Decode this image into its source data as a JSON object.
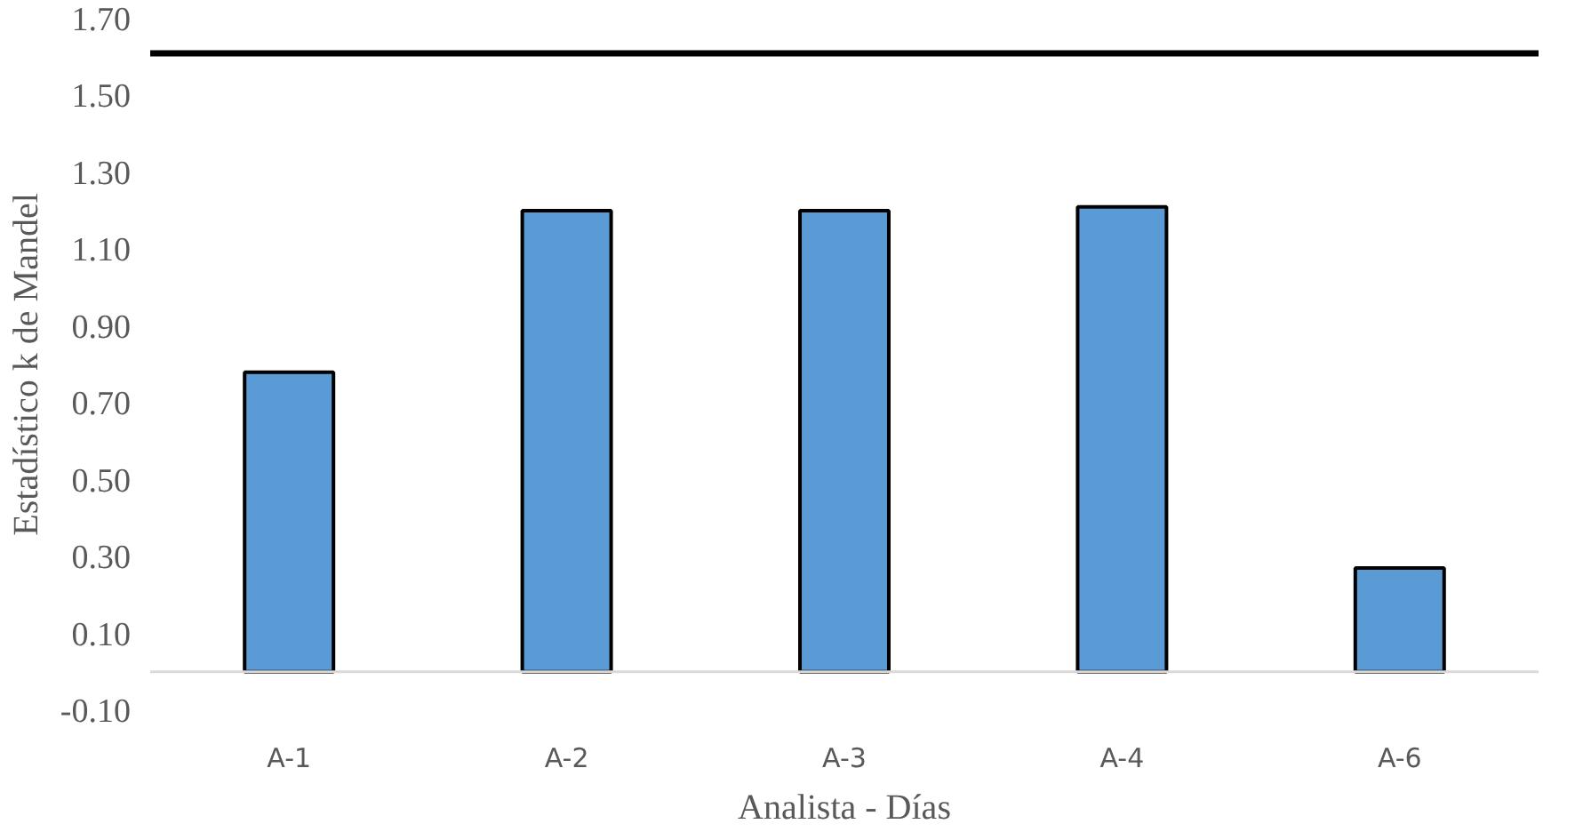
{
  "chart_data": {
    "type": "bar",
    "xlabel": "Analista - Días",
    "ylabel": "Estadístico k de Mandel",
    "categories": [
      "A-1",
      "A-2",
      "A-3",
      "A-4",
      "A-6"
    ],
    "values": [
      0.78,
      1.2,
      1.2,
      1.21,
      0.27
    ],
    "color": "#5b9bd5",
    "ylim": [
      -0.1,
      1.7
    ],
    "yticks": [
      {
        "value": -0.1,
        "label": "-0.10"
      },
      {
        "value": 0.1,
        "label": "0.10"
      },
      {
        "value": 0.3,
        "label": "0.30"
      },
      {
        "value": 0.5,
        "label": "0.50"
      },
      {
        "value": 0.7,
        "label": "0.70"
      },
      {
        "value": 0.9,
        "label": "0.90"
      },
      {
        "value": 1.1,
        "label": "1.10"
      },
      {
        "value": 1.3,
        "label": "1.30"
      },
      {
        "value": 1.5,
        "label": "1.50"
      },
      {
        "value": 1.7,
        "label": "1.70"
      }
    ],
    "ref_lines": [
      {
        "axis": "y",
        "value": 1.61,
        "color": "#000000"
      }
    ],
    "grid": false
  }
}
